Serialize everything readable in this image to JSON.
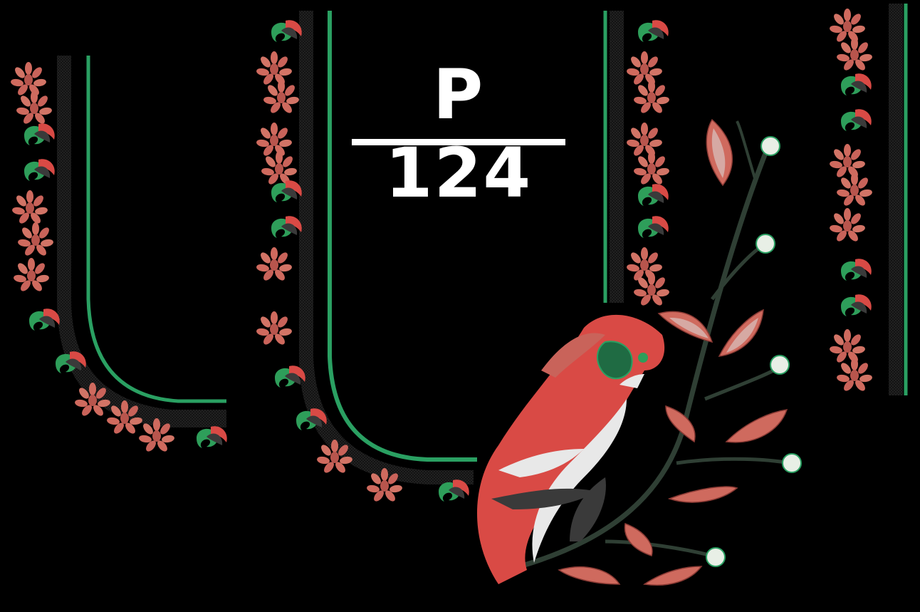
{
  "design": {
    "label": "P 124",
    "background_color": "#000000",
    "thread_colors": {
      "red": "#d94a45",
      "salmon": "#cf6a5e",
      "green": "#2e9e5a",
      "dark": "#3a3a3a",
      "white": "#e8e8e8",
      "border_green": "#2aa062"
    },
    "motifs": [
      "left-sleeve-border",
      "neck-border",
      "back-panel-border",
      "right-strip-border",
      "peacock",
      "floral-vine"
    ]
  }
}
